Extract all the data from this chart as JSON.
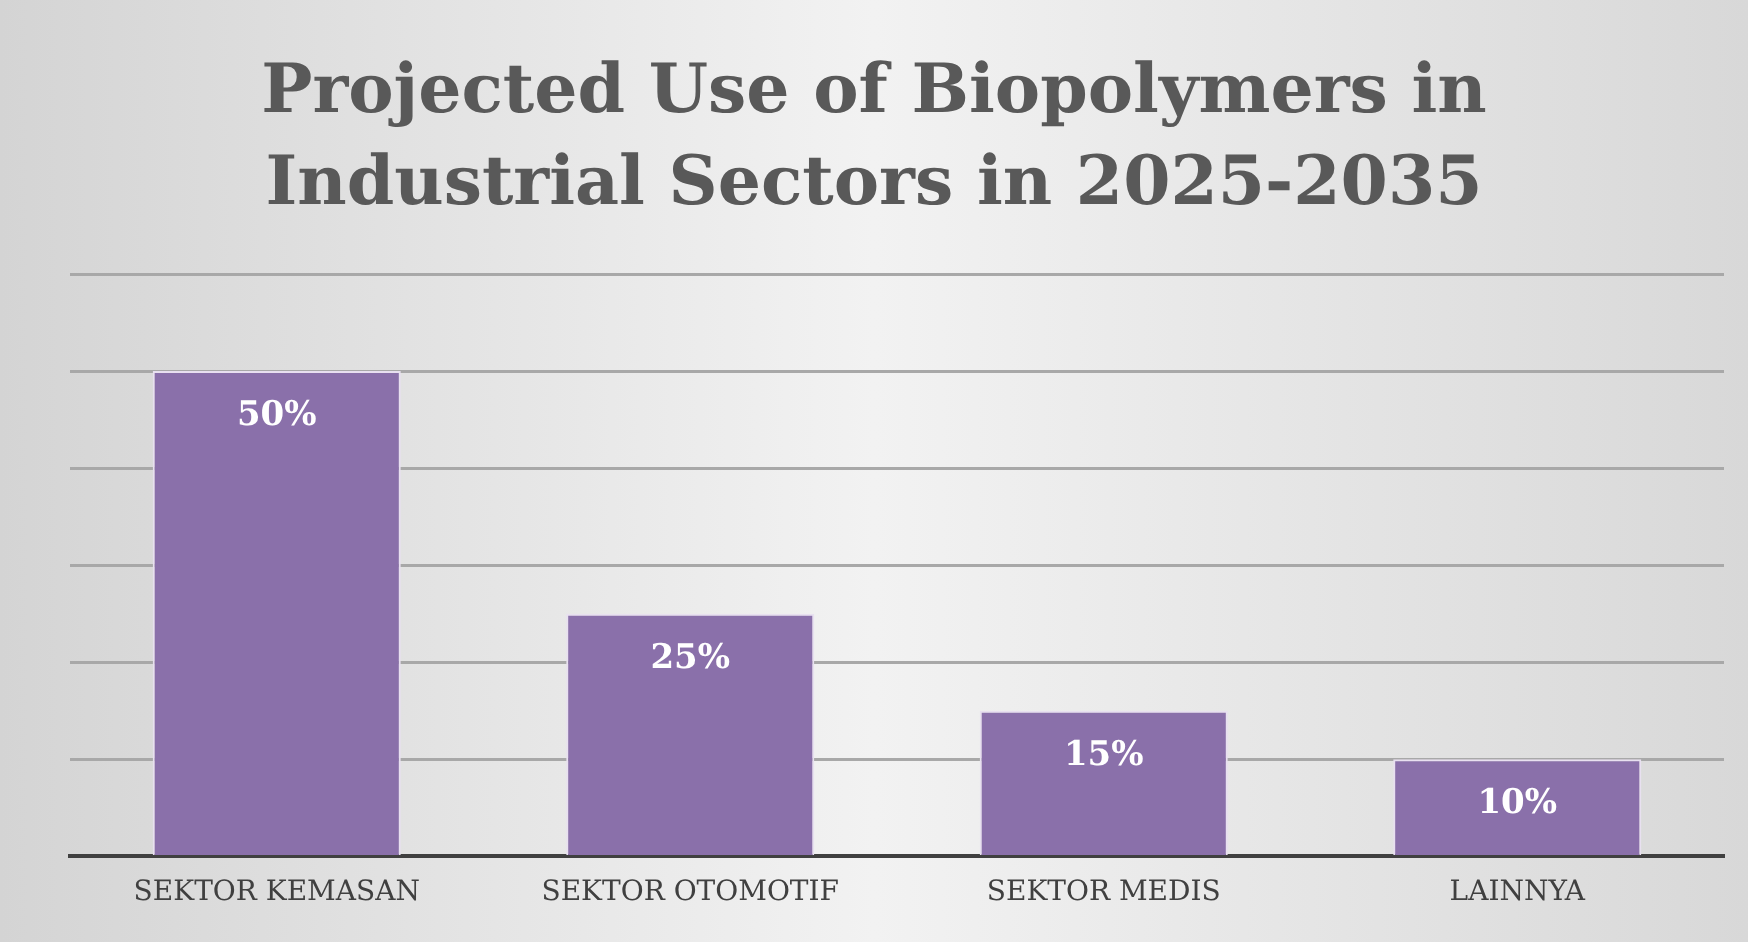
{
  "chart_data": {
    "type": "bar",
    "title": "Projected Use of Biopolymers in Industrial Sectors in 2025-2035",
    "categories": [
      "SEKTOR KEMASAN",
      "SEKTOR OTOMOTIF",
      "SEKTOR MEDIS",
      "LAINNYA"
    ],
    "values": [
      50,
      25,
      15,
      10
    ],
    "color": "#8a70aa",
    "value_labels": [
      "50%",
      "25%",
      "15%",
      "10%"
    ],
    "ylim": [
      0,
      60
    ],
    "yticks": [
      {
        "value": 0,
        "label": null
      },
      {
        "value": 10,
        "label": null
      },
      {
        "value": 20,
        "label": null
      },
      {
        "value": 30,
        "label": null
      },
      {
        "value": 40,
        "label": null
      },
      {
        "value": 50,
        "label": null
      },
      {
        "value": 60,
        "label": null
      }
    ],
    "tick_labels": "x",
    "grid": "y"
  }
}
